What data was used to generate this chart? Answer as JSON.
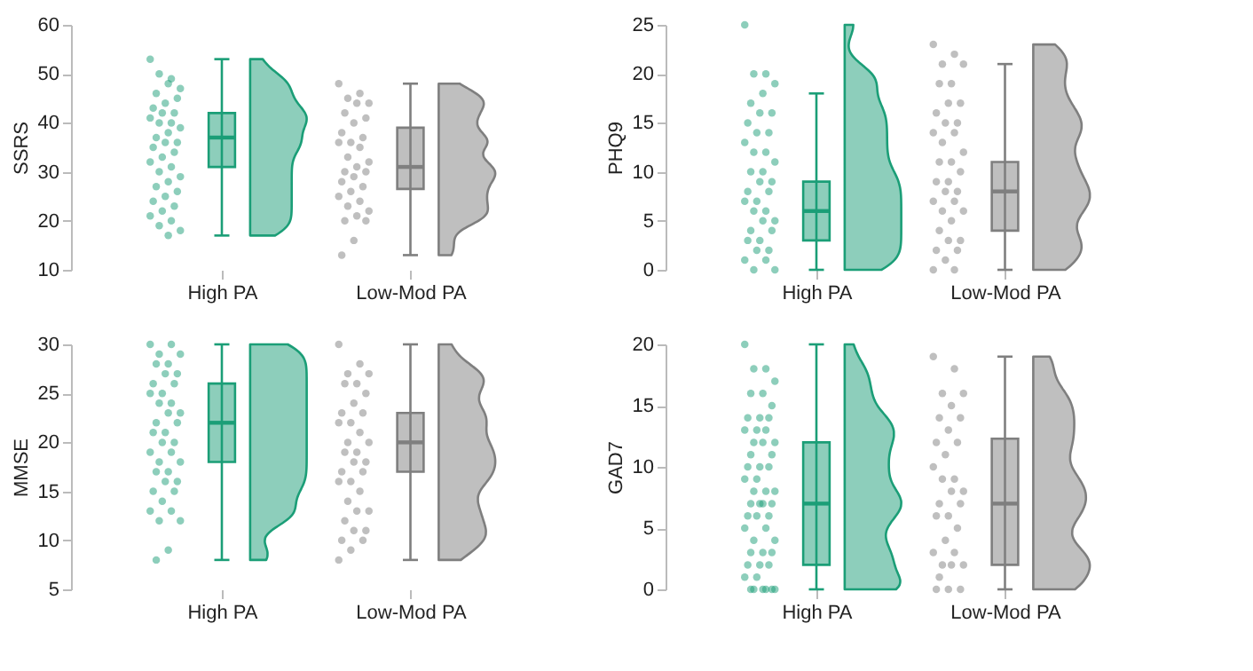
{
  "chart_data": [
    {
      "type": "box",
      "ylabel": "SSRS",
      "categories": [
        "High PA",
        "Low-Mod PA"
      ],
      "ylim": [
        10,
        60
      ],
      "yticks": [
        10,
        20,
        30,
        40,
        50,
        60
      ],
      "grid": false,
      "boxes": [
        {
          "low": 17,
          "q1": 31,
          "median": 37,
          "q3": 42,
          "high": 53
        },
        {
          "low": 13,
          "q1": 26.5,
          "median": 31,
          "q3": 39,
          "high": 48
        }
      ],
      "colors": [
        "#1b9e77",
        "#7f7f7f"
      ],
      "series": [
        {
          "type": "scatter",
          "color": "#1b9e77",
          "x": [
            "High PA",
            "High PA",
            "High PA",
            "High PA",
            "High PA",
            "High PA",
            "High PA",
            "High PA",
            "High PA",
            "High PA",
            "High PA",
            "High PA",
            "High PA",
            "High PA",
            "High PA",
            "High PA",
            "High PA",
            "High PA",
            "High PA",
            "High PA",
            "High PA",
            "High PA",
            "High PA",
            "High PA",
            "High PA",
            "High PA",
            "High PA",
            "High PA",
            "High PA",
            "High PA",
            "High PA",
            "High PA",
            "High PA",
            "High PA",
            "High PA",
            "High PA",
            "High PA",
            "High PA"
          ],
          "values": [
            53,
            49,
            50,
            47,
            48,
            46,
            45,
            44,
            43,
            42,
            42,
            41,
            40,
            40,
            39,
            38,
            37,
            36,
            36,
            35,
            34,
            33,
            32,
            31,
            30,
            29,
            28,
            27,
            26,
            25,
            24,
            23,
            22,
            21,
            20,
            19,
            18,
            17
          ]
        },
        {
          "type": "scatter",
          "color": "#7f7f7f",
          "x": [
            "Low-Mod PA",
            "Low-Mod PA",
            "Low-Mod PA",
            "Low-Mod PA",
            "Low-Mod PA",
            "Low-Mod PA",
            "Low-Mod PA",
            "Low-Mod PA",
            "Low-Mod PA",
            "Low-Mod PA",
            "Low-Mod PA",
            "Low-Mod PA",
            "Low-Mod PA",
            "Low-Mod PA",
            "Low-Mod PA",
            "Low-Mod PA",
            "Low-Mod PA",
            "Low-Mod PA",
            "Low-Mod PA",
            "Low-Mod PA",
            "Low-Mod PA",
            "Low-Mod PA",
            "Low-Mod PA",
            "Low-Mod PA",
            "Low-Mod PA",
            "Low-Mod PA",
            "Low-Mod PA",
            "Low-Mod PA",
            "Low-Mod PA",
            "Low-Mod PA",
            "Low-Mod PA"
          ],
          "values": [
            48,
            46,
            45,
            44,
            44,
            42,
            41,
            40,
            38,
            37,
            36,
            36,
            35,
            33,
            32,
            31,
            30,
            30,
            29,
            28,
            27,
            26,
            25,
            24,
            23,
            22,
            21,
            20,
            20,
            16,
            13
          ]
        }
      ]
    },
    {
      "type": "box",
      "ylabel": "PHQ9",
      "categories": [
        "High PA",
        "Low-Mod PA"
      ],
      "ylim": [
        0,
        25
      ],
      "yticks": [
        0,
        5,
        10,
        15,
        20,
        25
      ],
      "grid": false,
      "boxes": [
        {
          "low": 0,
          "q1": 3,
          "median": 6,
          "q3": 9,
          "high": 18
        },
        {
          "low": 0,
          "q1": 4,
          "median": 8,
          "q3": 11,
          "high": 21
        }
      ],
      "colors": [
        "#1b9e77",
        "#7f7f7f"
      ],
      "series": [
        {
          "type": "scatter",
          "color": "#1b9e77",
          "x": [
            "High PA",
            "High PA",
            "High PA",
            "High PA",
            "High PA",
            "High PA",
            "High PA",
            "High PA",
            "High PA",
            "High PA",
            "High PA",
            "High PA",
            "High PA",
            "High PA",
            "High PA",
            "High PA",
            "High PA",
            "High PA",
            "High PA",
            "High PA",
            "High PA",
            "High PA",
            "High PA",
            "High PA",
            "High PA",
            "High PA",
            "High PA",
            "High PA",
            "High PA",
            "High PA",
            "High PA",
            "High PA",
            "High PA",
            "High PA",
            "High PA",
            "High PA",
            "High PA"
          ],
          "values": [
            25,
            20,
            20,
            19,
            18,
            17,
            16,
            16,
            15,
            14,
            14,
            13,
            12,
            12,
            11,
            10,
            10,
            9,
            9,
            8,
            8,
            7,
            7,
            6,
            6,
            5,
            5,
            4,
            4,
            3,
            3,
            2,
            2,
            1,
            1,
            0,
            0
          ]
        },
        {
          "type": "scatter",
          "color": "#7f7f7f",
          "x": [
            "Low-Mod PA",
            "Low-Mod PA",
            "Low-Mod PA",
            "Low-Mod PA",
            "Low-Mod PA",
            "Low-Mod PA",
            "Low-Mod PA",
            "Low-Mod PA",
            "Low-Mod PA",
            "Low-Mod PA",
            "Low-Mod PA",
            "Low-Mod PA",
            "Low-Mod PA",
            "Low-Mod PA",
            "Low-Mod PA",
            "Low-Mod PA",
            "Low-Mod PA",
            "Low-Mod PA",
            "Low-Mod PA",
            "Low-Mod PA",
            "Low-Mod PA",
            "Low-Mod PA",
            "Low-Mod PA",
            "Low-Mod PA",
            "Low-Mod PA",
            "Low-Mod PA",
            "Low-Mod PA",
            "Low-Mod PA",
            "Low-Mod PA",
            "Low-Mod PA",
            "Low-Mod PA",
            "Low-Mod PA",
            "Low-Mod PA",
            "Low-Mod PA",
            "Low-Mod PA"
          ],
          "values": [
            23,
            22,
            21,
            21,
            19,
            19,
            17,
            17,
            16,
            15,
            15,
            14,
            14,
            13,
            12,
            11,
            11,
            10,
            9,
            9,
            8,
            8,
            7,
            7,
            6,
            6,
            5,
            4,
            3,
            3,
            2,
            2,
            1,
            0,
            0
          ]
        }
      ]
    },
    {
      "type": "box",
      "ylabel": "MMSE",
      "categories": [
        "High PA",
        "Low-Mod PA"
      ],
      "ylim": [
        5,
        30
      ],
      "yticks": [
        5,
        10,
        15,
        20,
        25,
        30
      ],
      "grid": false,
      "boxes": [
        {
          "low": 8,
          "q1": 18,
          "median": 22,
          "q3": 26,
          "high": 30
        },
        {
          "low": 8,
          "q1": 17,
          "median": 20,
          "q3": 23,
          "high": 30
        }
      ],
      "colors": [
        "#1b9e77",
        "#7f7f7f"
      ],
      "series": [
        {
          "type": "scatter",
          "color": "#1b9e77",
          "x": [
            "High PA",
            "High PA",
            "High PA",
            "High PA",
            "High PA",
            "High PA",
            "High PA",
            "High PA",
            "High PA",
            "High PA",
            "High PA",
            "High PA",
            "High PA",
            "High PA",
            "High PA",
            "High PA",
            "High PA",
            "High PA",
            "High PA",
            "High PA",
            "High PA",
            "High PA",
            "High PA",
            "High PA",
            "High PA",
            "High PA",
            "High PA",
            "High PA",
            "High PA",
            "High PA",
            "High PA",
            "High PA",
            "High PA",
            "High PA",
            "High PA",
            "High PA",
            "High PA",
            "High PA",
            "High PA"
          ],
          "values": [
            30,
            30,
            29,
            29,
            28,
            28,
            27,
            27,
            26,
            26,
            25,
            25,
            24,
            24,
            23,
            23,
            22,
            22,
            21,
            21,
            20,
            20,
            19,
            19,
            18,
            18,
            17,
            17,
            16,
            16,
            15,
            15,
            14,
            13,
            13,
            12,
            12,
            9,
            8
          ]
        },
        {
          "type": "scatter",
          "color": "#7f7f7f",
          "x": [
            "Low-Mod PA",
            "Low-Mod PA",
            "Low-Mod PA",
            "Low-Mod PA",
            "Low-Mod PA",
            "Low-Mod PA",
            "Low-Mod PA",
            "Low-Mod PA",
            "Low-Mod PA",
            "Low-Mod PA",
            "Low-Mod PA",
            "Low-Mod PA",
            "Low-Mod PA",
            "Low-Mod PA",
            "Low-Mod PA",
            "Low-Mod PA",
            "Low-Mod PA",
            "Low-Mod PA",
            "Low-Mod PA",
            "Low-Mod PA",
            "Low-Mod PA",
            "Low-Mod PA",
            "Low-Mod PA",
            "Low-Mod PA",
            "Low-Mod PA",
            "Low-Mod PA",
            "Low-Mod PA",
            "Low-Mod PA",
            "Low-Mod PA",
            "Low-Mod PA",
            "Low-Mod PA",
            "Low-Mod PA",
            "Low-Mod PA",
            "Low-Mod PA"
          ],
          "values": [
            30,
            28,
            27,
            27,
            26,
            26,
            25,
            24,
            23,
            23,
            22,
            22,
            21,
            20,
            20,
            19,
            19,
            18,
            18,
            17,
            17,
            16,
            16,
            15,
            14,
            13,
            13,
            12,
            11,
            11,
            10,
            10,
            9,
            8
          ]
        }
      ]
    },
    {
      "type": "box",
      "ylabel": "GAD7",
      "categories": [
        "High PA",
        "Low-Mod PA"
      ],
      "ylim": [
        0,
        20
      ],
      "yticks": [
        0,
        5,
        10,
        15,
        20
      ],
      "grid": false,
      "boxes": [
        {
          "low": 0,
          "q1": 2,
          "median": 7,
          "q3": 12,
          "high": 20
        },
        {
          "low": 0,
          "q1": 2,
          "median": 7,
          "q3": 12.3,
          "high": 19
        }
      ],
      "colors": [
        "#1b9e77",
        "#7f7f7f"
      ],
      "series": [
        {
          "type": "scatter",
          "color": "#1b9e77",
          "x": [
            "High PA",
            "High PA",
            "High PA",
            "High PA",
            "High PA",
            "High PA",
            "High PA",
            "High PA",
            "High PA",
            "High PA",
            "High PA",
            "High PA",
            "High PA",
            "High PA",
            "High PA",
            "High PA",
            "High PA",
            "High PA",
            "High PA",
            "High PA",
            "High PA",
            "High PA",
            "High PA",
            "High PA",
            "High PA",
            "High PA",
            "High PA",
            "High PA",
            "High PA",
            "High PA",
            "High PA",
            "High PA",
            "High PA",
            "High PA",
            "High PA",
            "High PA",
            "High PA",
            "High PA",
            "High PA",
            "High PA",
            "High PA",
            "High PA",
            "High PA",
            "High PA",
            "High PA",
            "High PA",
            "High PA",
            "High PA",
            "High PA",
            "High PA",
            "High PA"
          ],
          "values": [
            20,
            18,
            18,
            17,
            16,
            16,
            15,
            14,
            14,
            14,
            13,
            13,
            13,
            12,
            12,
            12,
            11,
            11,
            10,
            10,
            10,
            9,
            9,
            8,
            8,
            8,
            7,
            7,
            7,
            7,
            6,
            6,
            6,
            5,
            5,
            4,
            4,
            3,
            3,
            3,
            2,
            2,
            2,
            1,
            1,
            0,
            0,
            0,
            0,
            0,
            0
          ]
        },
        {
          "type": "scatter",
          "color": "#7f7f7f",
          "x": [
            "Low-Mod PA",
            "Low-Mod PA",
            "Low-Mod PA",
            "Low-Mod PA",
            "Low-Mod PA",
            "Low-Mod PA",
            "Low-Mod PA",
            "Low-Mod PA",
            "Low-Mod PA",
            "Low-Mod PA",
            "Low-Mod PA",
            "Low-Mod PA",
            "Low-Mod PA",
            "Low-Mod PA",
            "Low-Mod PA",
            "Low-Mod PA",
            "Low-Mod PA",
            "Low-Mod PA",
            "Low-Mod PA",
            "Low-Mod PA",
            "Low-Mod PA",
            "Low-Mod PA",
            "Low-Mod PA",
            "Low-Mod PA",
            "Low-Mod PA",
            "Low-Mod PA",
            "Low-Mod PA",
            "Low-Mod PA",
            "Low-Mod PA",
            "Low-Mod PA",
            "Low-Mod PA"
          ],
          "values": [
            19,
            18,
            16,
            16,
            15,
            14,
            14,
            13,
            12,
            12,
            11,
            10,
            9,
            9,
            8,
            8,
            7,
            7,
            6,
            6,
            5,
            4,
            3,
            3,
            2,
            2,
            2,
            1,
            0,
            0,
            0
          ]
        }
      ]
    }
  ]
}
